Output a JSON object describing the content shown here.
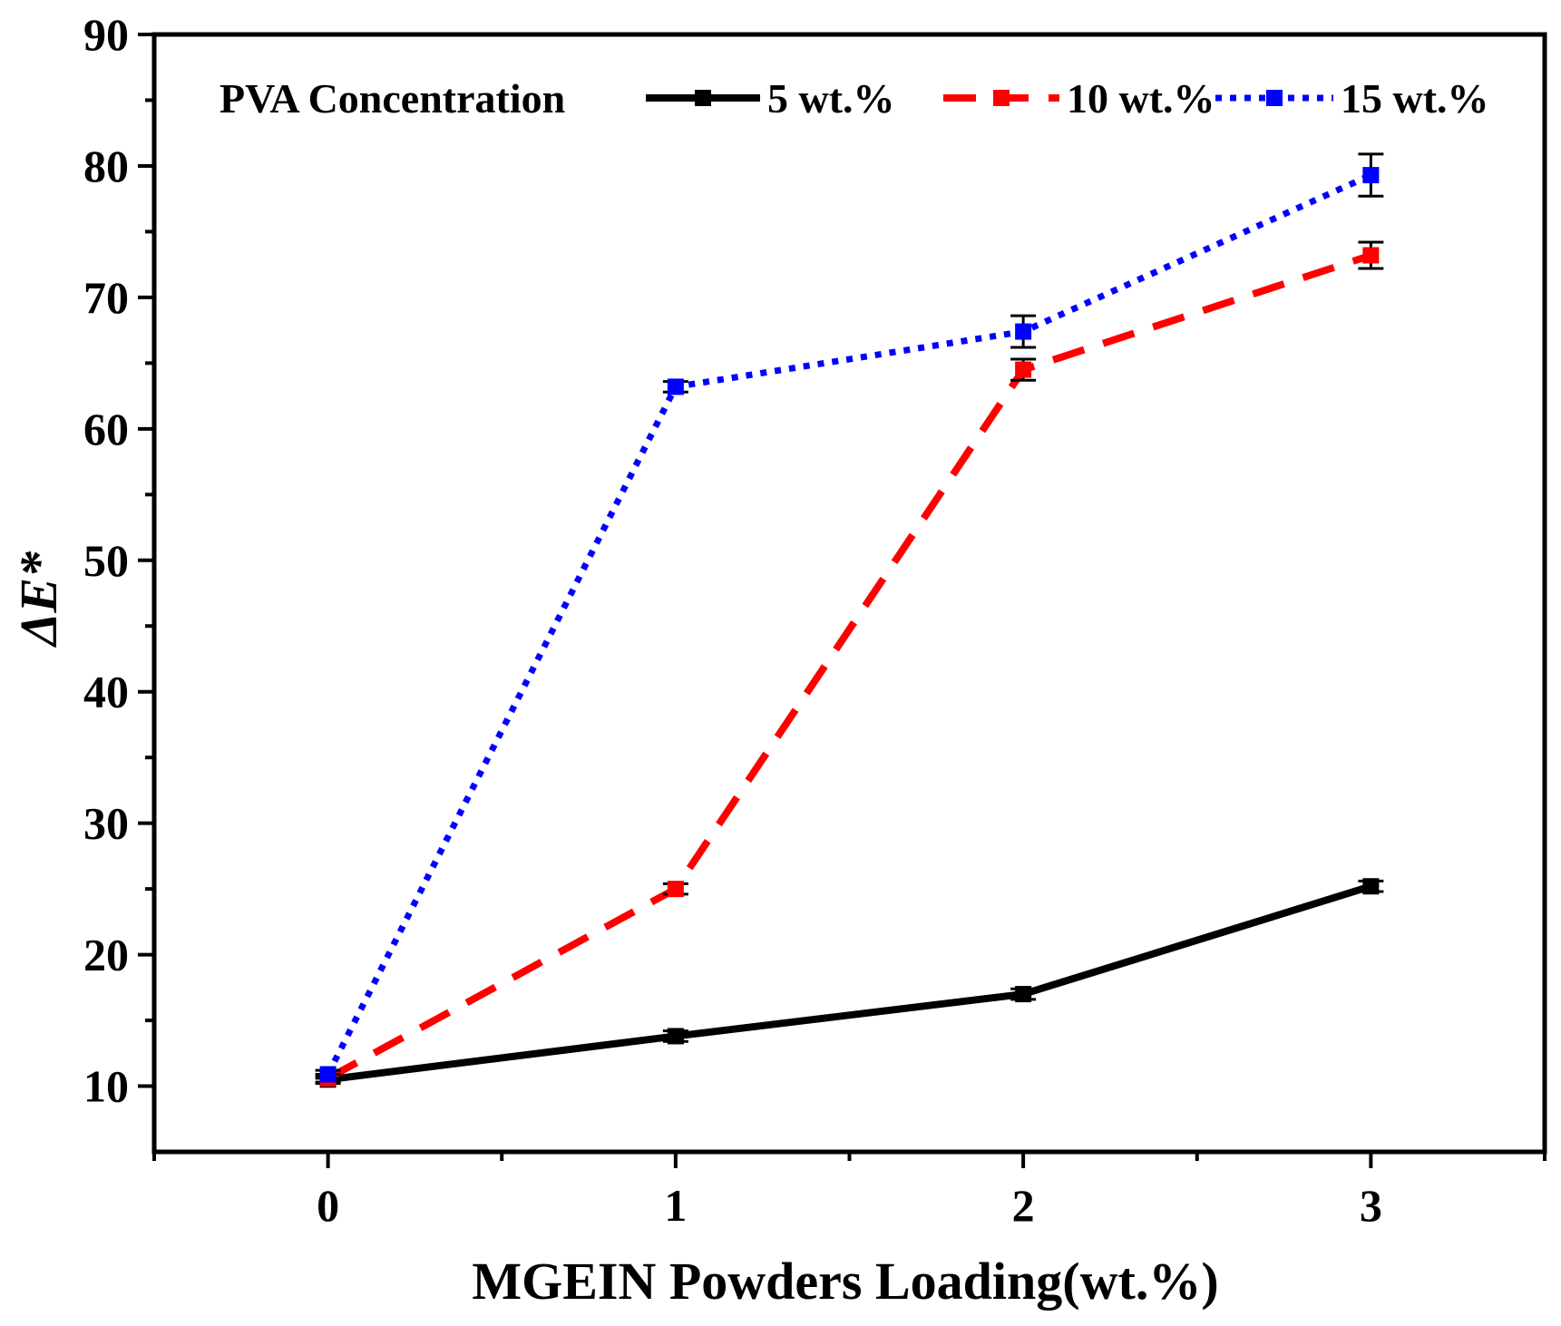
{
  "chart_data": {
    "type": "line",
    "title": "",
    "xlabel": "MGEIN Powders Loading(wt.%)",
    "ylabel": "ΔE*",
    "x": [
      0,
      1,
      2,
      3
    ],
    "x_ticks": [
      "0",
      "1",
      "2",
      "3"
    ],
    "xlim": [
      -0.5,
      3.5
    ],
    "ylim": [
      5,
      90
    ],
    "y_ticks": [
      10,
      20,
      30,
      40,
      50,
      60,
      70,
      80,
      90
    ],
    "y_tick_labels": [
      "10",
      "20",
      "30",
      "40",
      "50",
      "60",
      "70",
      "80",
      "90"
    ],
    "grid": false,
    "legend": {
      "title": "PVA Concentration",
      "placement": "top"
    },
    "series": [
      {
        "name": "5 wt.%",
        "color": "#000000",
        "style": "solid",
        "values": [
          10.5,
          13.8,
          17.0,
          25.2
        ],
        "errors": [
          0.3,
          0.4,
          0.4,
          0.4
        ]
      },
      {
        "name": "10 wt.%",
        "color": "#ff0000",
        "style": "dashed",
        "values": [
          10.6,
          25.0,
          64.5,
          73.2
        ],
        "errors": [
          0.3,
          0.4,
          0.8,
          1.0
        ]
      },
      {
        "name": "15 wt.%",
        "color": "#0000ff",
        "style": "dotted",
        "values": [
          10.9,
          63.2,
          67.4,
          79.3
        ],
        "errors": [
          0.3,
          0.4,
          1.2,
          1.6
        ]
      }
    ]
  }
}
